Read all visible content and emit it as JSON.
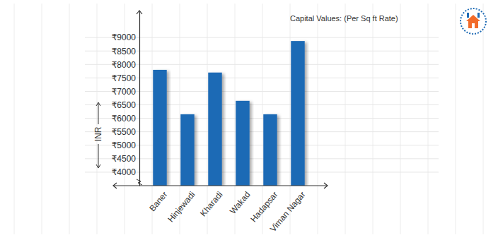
{
  "chart_data": {
    "type": "bar",
    "title": "Capital Values: (Per Sq ft Rate)",
    "y_label": "INR",
    "categories": [
      "Baner",
      "Hinjewadi",
      "Kharadi",
      "Wakad",
      "Hadapsar",
      "Viman Nagar"
    ],
    "values": [
      7800,
      6150,
      7700,
      6650,
      6150,
      8870
    ],
    "color": "#1f6bb5",
    "ylim": [
      3500,
      10000
    ],
    "yticks": [
      {
        "value": 4000,
        "label": "₹4000"
      },
      {
        "value": 4500,
        "label": "₹4500"
      },
      {
        "value": 5000,
        "label": "₹5000"
      },
      {
        "value": 5500,
        "label": "₹5500"
      },
      {
        "value": 6000,
        "label": "₹6000"
      },
      {
        "value": 6500,
        "label": "₹6500"
      },
      {
        "value": 7000,
        "label": "₹7000"
      },
      {
        "value": 7500,
        "label": "₹7500"
      },
      {
        "value": 8000,
        "label": "₹8000"
      },
      {
        "value": 8500,
        "label": "₹8500"
      },
      {
        "value": 9000,
        "label": "₹9000"
      }
    ],
    "grid": true
  }
}
